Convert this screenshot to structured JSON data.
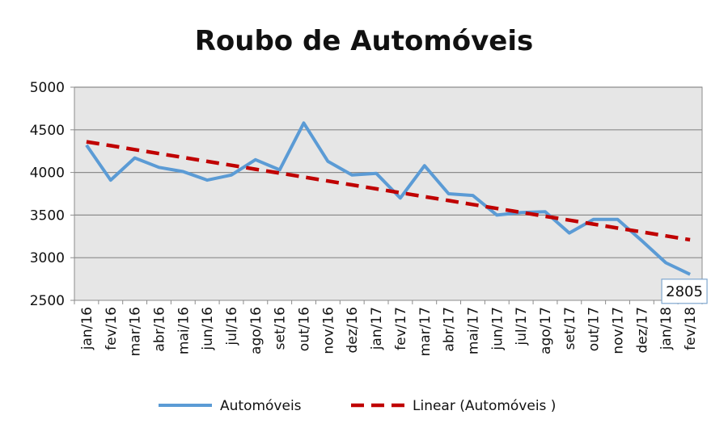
{
  "chart_data": {
    "type": "line",
    "title": "Roubo de Automóveis",
    "categories": [
      "jan/16",
      "fev/16",
      "mar/16",
      "abr/16",
      "mai/16",
      "jun/16",
      "jul/16",
      "ago/16",
      "set/16",
      "out/16",
      "nov/16",
      "dez/16",
      "jan/17",
      "fev/17",
      "mar/17",
      "abr/17",
      "mai/17",
      "jun/17",
      "jul/17",
      "ago/17",
      "set/17",
      "out/17",
      "nov/17",
      "dez/17",
      "jan/18",
      "fev/18"
    ],
    "series": [
      {
        "name": "Automóveis",
        "color": "#5b9bd5",
        "values": [
          4320,
          3910,
          4170,
          4060,
          4010,
          3910,
          3970,
          4150,
          4030,
          4580,
          4130,
          3970,
          3990,
          3700,
          4080,
          3750,
          3730,
          3500,
          3530,
          3540,
          3290,
          3450,
          3450,
          3200,
          2940,
          2805
        ]
      },
      {
        "name": "Linear (Automóveis )",
        "color": "#c00000",
        "style": "dashed",
        "values": [
          4360,
          4314,
          4268,
          4222,
          4176,
          4130,
          4084,
          4038,
          3992,
          3946,
          3900,
          3854,
          3808,
          3762,
          3716,
          3670,
          3624,
          3578,
          3532,
          3486,
          3440,
          3394,
          3348,
          3302,
          3256,
          3210
        ]
      }
    ],
    "ylim": [
      2500,
      5000
    ],
    "yticks": [
      2500,
      3000,
      3500,
      4000,
      4500,
      5000
    ],
    "grid": true,
    "legend": "bottom",
    "data_label": {
      "category": "fev/18",
      "text": "2805"
    },
    "plot_background": "#e6e6e6"
  }
}
